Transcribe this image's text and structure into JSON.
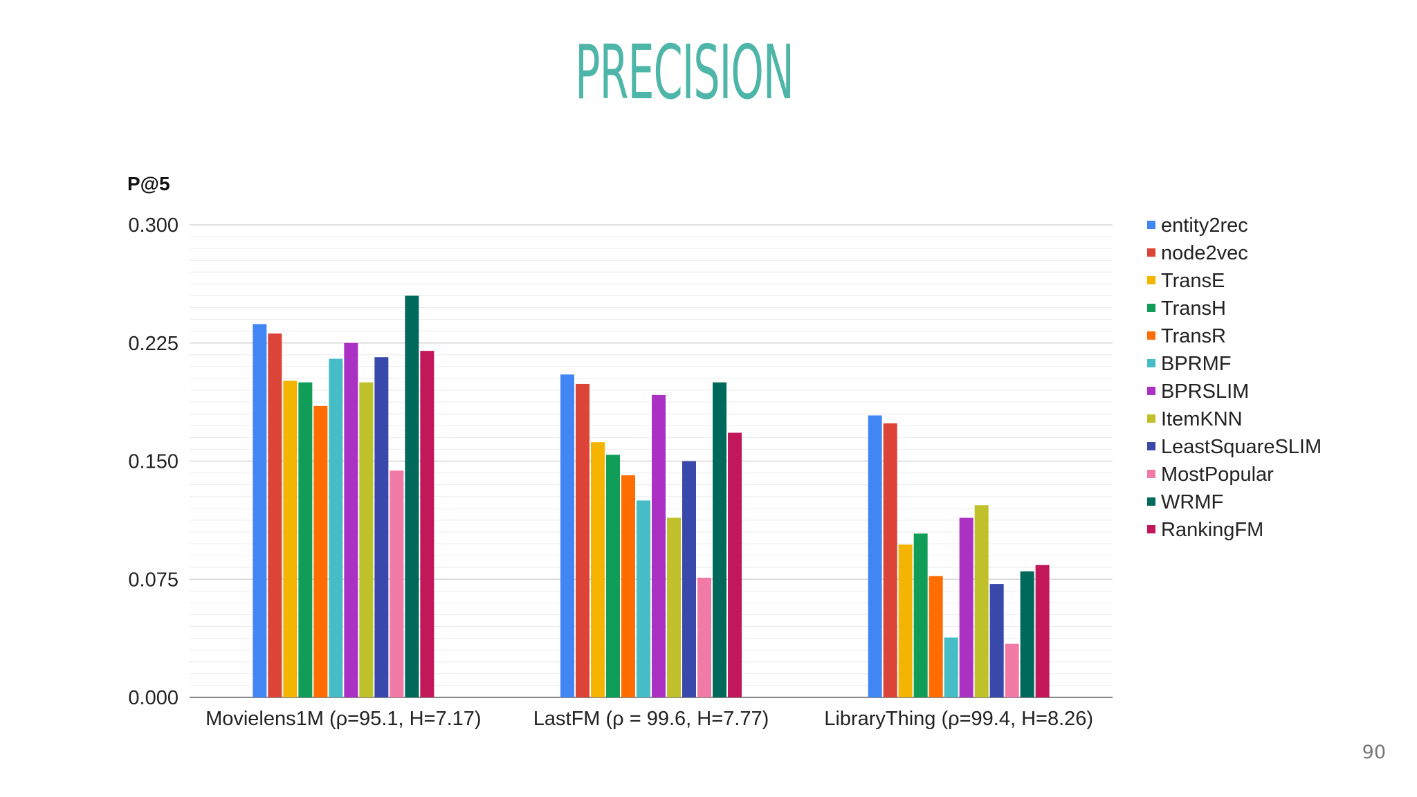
{
  "slide": {
    "title": "PRECISION",
    "page_number": "90",
    "title_color": "#4db6a8"
  },
  "chart_data": {
    "type": "bar",
    "ylabel": "P@5",
    "ylim": [
      0,
      0.3
    ],
    "yticks": [
      "0.000",
      "0.075",
      "0.150",
      "0.225",
      "0.300"
    ],
    "grid": true,
    "legend_position": "right",
    "categories": [
      "Movielens1M (ρ=95.1, H=7.17)",
      "LastFM (ρ = 99.6, H=7.77)",
      "LibraryThing (ρ=99.4, H=8.26)"
    ],
    "series": [
      {
        "name": "entity2rec",
        "color": "#4285f4",
        "values": [
          0.237,
          0.205,
          0.179
        ]
      },
      {
        "name": "node2vec",
        "color": "#db4437",
        "values": [
          0.231,
          0.199,
          0.174
        ]
      },
      {
        "name": "TransE",
        "color": "#f4b400",
        "values": [
          0.201,
          0.162,
          0.097
        ]
      },
      {
        "name": "TransH",
        "color": "#0f9d58",
        "values": [
          0.2,
          0.154,
          0.104
        ]
      },
      {
        "name": "TransR",
        "color": "#ff6d00",
        "values": [
          0.185,
          0.141,
          0.077
        ]
      },
      {
        "name": "BPRMF",
        "color": "#46bdc6",
        "values": [
          0.215,
          0.125,
          0.038
        ]
      },
      {
        "name": "BPRSLIM",
        "color": "#ab30c4",
        "values": [
          0.225,
          0.192,
          0.114
        ]
      },
      {
        "name": "ItemKNN",
        "color": "#c0c02b",
        "values": [
          0.2,
          0.114,
          0.122
        ]
      },
      {
        "name": "LeastSquareSLIM",
        "color": "#3949ab",
        "values": [
          0.216,
          0.15,
          0.072
        ]
      },
      {
        "name": "MostPopular",
        "color": "#f27aa7",
        "values": [
          0.144,
          0.076,
          0.034
        ]
      },
      {
        "name": "WRMF",
        "color": "#00695c",
        "values": [
          0.255,
          0.2,
          0.08
        ]
      },
      {
        "name": "RankingFM",
        "color": "#c2185b",
        "values": [
          0.22,
          0.168,
          0.084
        ]
      }
    ]
  }
}
